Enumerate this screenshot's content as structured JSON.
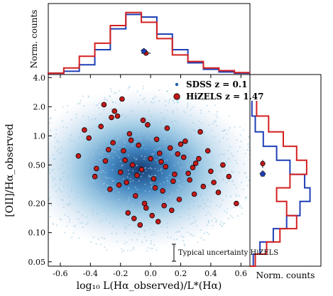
{
  "chart_data": [
    {
      "type": "scatter",
      "xlabel": "log₁₀ L(Hα_observed)/L*(Hα)",
      "ylabel": "[OII]/Hα_observed",
      "xlim": [
        -0.68,
        0.66
      ],
      "ylim": [
        0.045,
        4.3
      ],
      "yscale": "log",
      "xticks": [
        "-0.6",
        "-0.4",
        "-0.2",
        "0.0",
        "0.2",
        "0.4",
        "0.6"
      ],
      "yticks": [
        "0.05",
        "0.10",
        "0.20",
        "0.50",
        "1.0",
        "2.0",
        "4.0"
      ],
      "legend_position": "top-right",
      "series": [
        {
          "name": "SDSS z = 0.1",
          "kind": "density",
          "color": "#1f5fa8",
          "center": [
            -0.07,
            0.45
          ]
        },
        {
          "name": "HiZELS z = 1.47",
          "kind": "points",
          "color": "#c41a1a",
          "x": [
            -0.48,
            -0.41,
            -0.37,
            -0.33,
            -0.3,
            -0.27,
            -0.25,
            -0.22,
            -0.2,
            -0.18,
            -0.16,
            -0.14,
            -0.12,
            -0.1,
            -0.08,
            -0.06,
            -0.04,
            -0.02,
            0.0,
            0.02,
            0.04,
            0.06,
            0.08,
            0.1,
            0.13,
            0.16,
            0.19,
            0.22,
            0.26,
            0.3,
            0.35,
            0.4,
            0.45,
            0.52,
            0.57,
            -0.31,
            -0.24,
            -0.19,
            -0.15,
            -0.11,
            -0.07,
            -0.03,
            0.01,
            0.05,
            0.09,
            0.14,
            0.18,
            0.23,
            0.28,
            0.33,
            -0.28,
            -0.21,
            -0.13,
            -0.05,
            0.03,
            0.11,
            0.2,
            0.29,
            0.38,
            -0.17,
            -0.09,
            0.07,
            0.15,
            0.25,
            -0.36,
            -0.26,
            0.32,
            0.42,
            0.48,
            -0.44
          ],
          "y": [
            0.62,
            0.95,
            0.38,
            1.25,
            0.55,
            0.28,
            0.85,
            1.6,
            0.42,
            0.7,
            0.33,
            1.05,
            0.5,
            0.24,
            0.8,
            0.45,
            0.2,
            1.3,
            0.58,
            0.36,
            0.92,
            0.66,
            0.27,
            0.48,
            0.75,
            0.4,
            0.22,
            0.6,
            0.35,
            0.52,
            0.3,
            0.43,
            0.26,
            0.38,
            0.2,
            2.1,
            1.8,
            2.4,
            0.16,
            0.14,
            0.12,
            0.18,
            0.15,
            0.13,
            0.19,
            0.17,
            0.65,
            0.88,
            0.47,
            1.1,
            0.72,
            0.31,
            0.9,
            1.45,
            0.29,
            1.2,
            0.82,
            0.25,
            0.7,
            0.56,
            0.39,
            0.54,
            0.34,
            0.41,
            0.46,
            1.55,
            0.58,
            0.33,
            0.5,
            1.15
          ]
        },
        {
          "name": "Typical uncertainty HiZELS",
          "kind": "errorbar",
          "color": "#000000",
          "x": 0.15,
          "y": 0.06
        }
      ],
      "annotation": "Typical uncertainty HiZELS"
    },
    {
      "type": "histogram",
      "orientation": "vertical",
      "ylabel": "Norm. counts",
      "bin_edges": [
        -0.68,
        -0.58,
        -0.48,
        -0.38,
        -0.28,
        -0.18,
        -0.08,
        0.02,
        0.12,
        0.22,
        0.32,
        0.42,
        0.52,
        0.62
      ],
      "series": [
        {
          "name": "SDSS z = 0.1",
          "color": "#1f3fb5",
          "values": [
            0.02,
            0.05,
            0.15,
            0.38,
            0.7,
            0.92,
            0.88,
            0.62,
            0.38,
            0.18,
            0.08,
            0.04,
            0.02
          ]
        },
        {
          "name": "HiZELS z = 1.47",
          "color": "#d42020",
          "values": [
            0.02,
            0.1,
            0.28,
            0.48,
            0.75,
            0.95,
            0.8,
            0.55,
            0.3,
            0.2,
            0.1,
            0.06,
            0.03
          ]
        }
      ],
      "marker": {
        "x": -0.05,
        "err": 0.03
      }
    },
    {
      "type": "histogram",
      "orientation": "horizontal",
      "xlabel": "Norm. counts",
      "series": [
        {
          "name": "SDSS z = 0.1",
          "color": "#1f3fb5"
        },
        {
          "name": "HiZELS z = 1.47",
          "color": "#d42020"
        }
      ],
      "marker": {
        "y": 0.5
      }
    }
  ]
}
